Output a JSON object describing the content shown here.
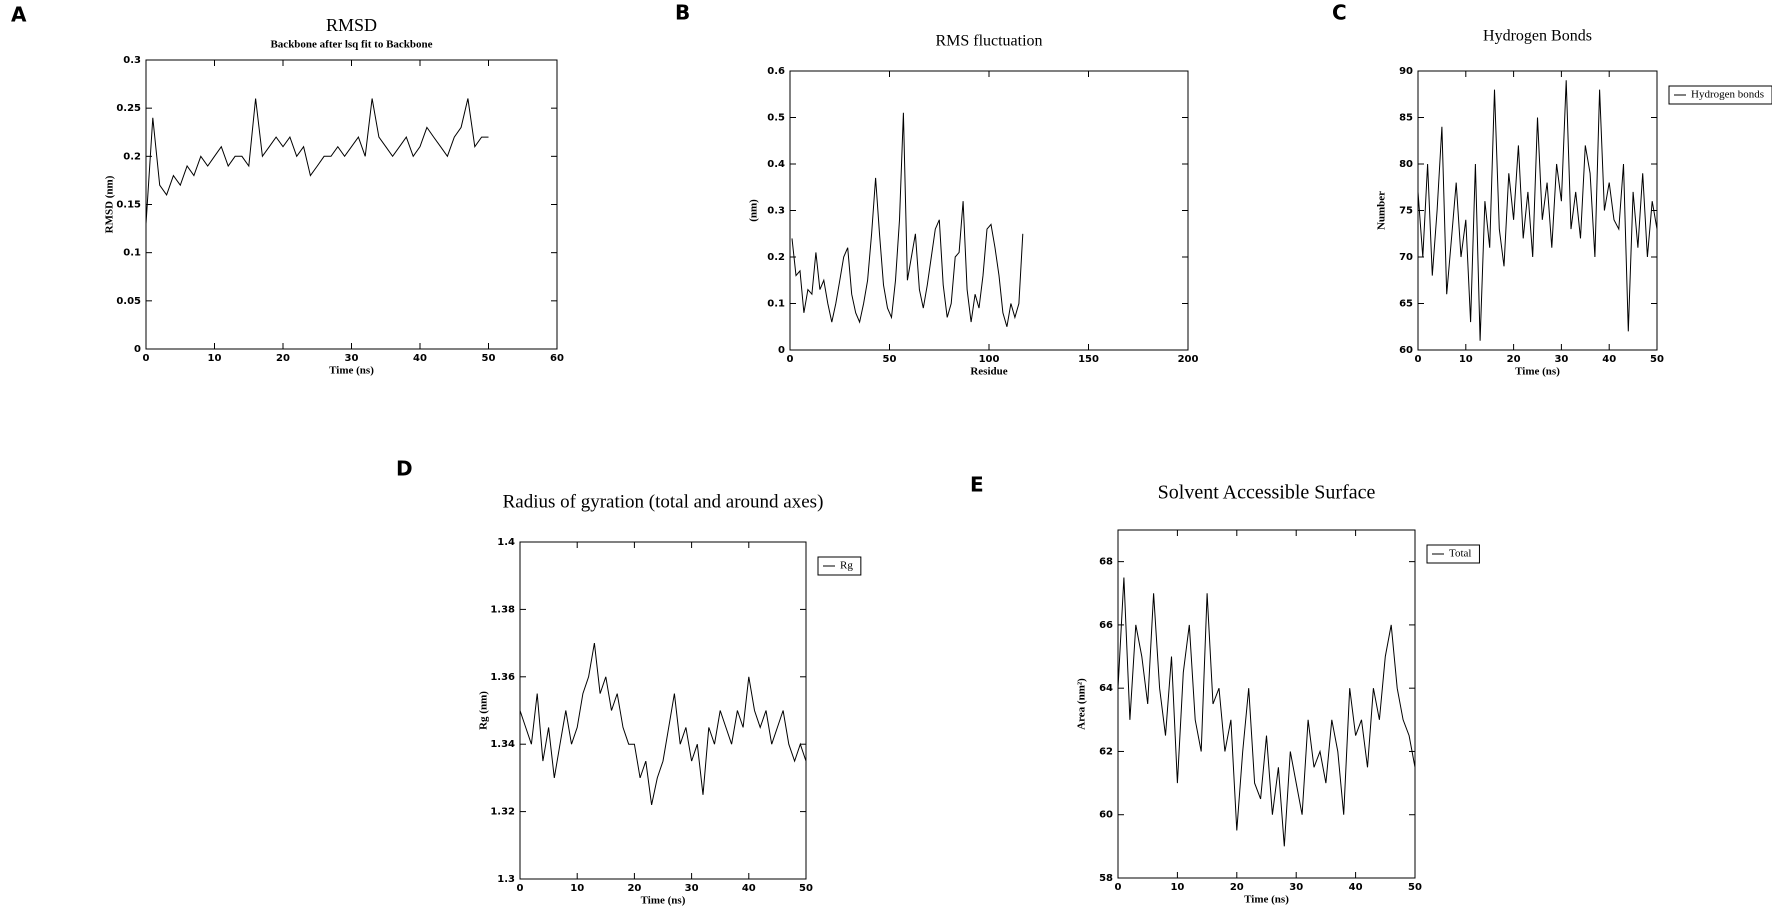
{
  "chart_data": [
    {
      "panel": "A",
      "type": "line",
      "title": "RMSD",
      "subtitle": "Backbone after lsq fit to Backbone",
      "x_label": "Time (ns)",
      "y_label": "RMSD (nm)",
      "xlim": [
        0,
        60
      ],
      "xticks": [
        0,
        10,
        20,
        30,
        40,
        50,
        60
      ],
      "ylim": [
        0,
        0.3
      ],
      "yticks": [
        0,
        0.05,
        0.1,
        0.15,
        0.2,
        0.25,
        0.3
      ],
      "grid": false,
      "x": [
        0,
        1,
        2,
        3,
        4,
        5,
        6,
        7,
        8,
        9,
        10,
        11,
        12,
        13,
        14,
        15,
        16,
        17,
        18,
        19,
        20,
        21,
        22,
        23,
        24,
        25,
        26,
        27,
        28,
        29,
        30,
        31,
        32,
        33,
        34,
        35,
        36,
        37,
        38,
        39,
        40,
        41,
        42,
        43,
        44,
        45,
        46,
        47,
        48,
        49,
        50
      ],
      "series": [
        {
          "color": "#000000",
          "values": [
            0.13,
            0.24,
            0.17,
            0.16,
            0.18,
            0.17,
            0.19,
            0.18,
            0.2,
            0.19,
            0.2,
            0.21,
            0.19,
            0.2,
            0.2,
            0.19,
            0.26,
            0.2,
            0.21,
            0.22,
            0.21,
            0.22,
            0.2,
            0.21,
            0.18,
            0.19,
            0.2,
            0.2,
            0.21,
            0.2,
            0.21,
            0.22,
            0.2,
            0.26,
            0.22,
            0.21,
            0.2,
            0.21,
            0.22,
            0.2,
            0.21,
            0.23,
            0.22,
            0.21,
            0.2,
            0.22,
            0.23,
            0.26,
            0.21,
            0.22,
            0.22
          ]
        }
      ]
    },
    {
      "panel": "B",
      "type": "line",
      "title": "RMS fluctuation",
      "x_label": "Residue",
      "y_label": "(nm)",
      "xlim": [
        0,
        200
      ],
      "xticks": [
        0,
        50,
        100,
        150,
        200
      ],
      "ylim": [
        0,
        0.6
      ],
      "yticks": [
        0,
        0.1,
        0.2,
        0.3,
        0.4,
        0.5,
        0.6
      ],
      "grid": false,
      "x": [
        1,
        3,
        5,
        7,
        9,
        11,
        13,
        15,
        17,
        19,
        21,
        23,
        25,
        27,
        29,
        31,
        33,
        35,
        37,
        39,
        41,
        43,
        45,
        47,
        49,
        51,
        53,
        55,
        57,
        59,
        61,
        63,
        65,
        67,
        69,
        71,
        73,
        75,
        77,
        79,
        81,
        83,
        85,
        87,
        89,
        91,
        93,
        95,
        97,
        99,
        101,
        103,
        105,
        107,
        109,
        111,
        113,
        115,
        117
      ],
      "series": [
        {
          "color": "#000000",
          "values": [
            0.24,
            0.16,
            0.17,
            0.08,
            0.13,
            0.12,
            0.21,
            0.13,
            0.15,
            0.1,
            0.06,
            0.1,
            0.15,
            0.2,
            0.22,
            0.12,
            0.08,
            0.06,
            0.1,
            0.15,
            0.25,
            0.37,
            0.25,
            0.14,
            0.09,
            0.07,
            0.15,
            0.28,
            0.51,
            0.15,
            0.2,
            0.25,
            0.13,
            0.09,
            0.14,
            0.2,
            0.26,
            0.28,
            0.14,
            0.07,
            0.1,
            0.2,
            0.21,
            0.32,
            0.13,
            0.06,
            0.12,
            0.09,
            0.16,
            0.26,
            0.27,
            0.22,
            0.16,
            0.08,
            0.05,
            0.1,
            0.07,
            0.1,
            0.25
          ]
        }
      ]
    },
    {
      "panel": "C",
      "type": "line",
      "title": "Hydrogen Bonds",
      "x_label": "Time (ns)",
      "y_label": "Number",
      "legend": "right",
      "xlim": [
        0,
        50
      ],
      "xticks": [
        0,
        10,
        20,
        30,
        40,
        50
      ],
      "ylim": [
        60,
        90
      ],
      "yticks": [
        60,
        65,
        70,
        75,
        80,
        85,
        90
      ],
      "grid": false,
      "x": [
        0,
        1,
        2,
        3,
        4,
        5,
        6,
        7,
        8,
        9,
        10,
        11,
        12,
        13,
        14,
        15,
        16,
        17,
        18,
        19,
        20,
        21,
        22,
        23,
        24,
        25,
        26,
        27,
        28,
        29,
        30,
        31,
        32,
        33,
        34,
        35,
        36,
        37,
        38,
        39,
        40,
        41,
        42,
        43,
        44,
        45,
        46,
        47,
        48,
        49,
        50
      ],
      "series": [
        {
          "name": "Hydrogen bonds",
          "color": "#000000",
          "values": [
            77,
            70,
            80,
            68,
            75,
            84,
            66,
            72,
            78,
            70,
            74,
            63,
            80,
            61,
            76,
            71,
            88,
            73,
            69,
            79,
            74,
            82,
            72,
            77,
            70,
            85,
            74,
            78,
            71,
            80,
            76,
            89,
            73,
            77,
            72,
            82,
            79,
            70,
            88,
            75,
            78,
            74,
            73,
            80,
            62,
            77,
            71,
            79,
            70,
            76,
            73
          ]
        }
      ]
    },
    {
      "panel": "D",
      "type": "line",
      "title": "Radius of gyration (total and around axes)",
      "x_label": "Time (ns)",
      "y_label": "Rg (nm)",
      "legend": "right",
      "xlim": [
        0,
        50
      ],
      "xticks": [
        0,
        10,
        20,
        30,
        40,
        50
      ],
      "ylim": [
        1.3,
        1.4
      ],
      "yticks": [
        1.3,
        1.32,
        1.34,
        1.36,
        1.38,
        1.4
      ],
      "grid": false,
      "x": [
        0,
        1,
        2,
        3,
        4,
        5,
        6,
        7,
        8,
        9,
        10,
        11,
        12,
        13,
        14,
        15,
        16,
        17,
        18,
        19,
        20,
        21,
        22,
        23,
        24,
        25,
        26,
        27,
        28,
        29,
        30,
        31,
        32,
        33,
        34,
        35,
        36,
        37,
        38,
        39,
        40,
        41,
        42,
        43,
        44,
        45,
        46,
        47,
        48,
        49,
        50
      ],
      "series": [
        {
          "name": "Rg",
          "color": "#000000",
          "values": [
            1.35,
            1.345,
            1.34,
            1.355,
            1.335,
            1.345,
            1.33,
            1.34,
            1.35,
            1.34,
            1.345,
            1.355,
            1.36,
            1.37,
            1.355,
            1.36,
            1.35,
            1.355,
            1.345,
            1.34,
            1.34,
            1.33,
            1.335,
            1.322,
            1.33,
            1.335,
            1.345,
            1.355,
            1.34,
            1.345,
            1.335,
            1.34,
            1.325,
            1.345,
            1.34,
            1.35,
            1.345,
            1.34,
            1.35,
            1.345,
            1.36,
            1.35,
            1.345,
            1.35,
            1.34,
            1.345,
            1.35,
            1.34,
            1.335,
            1.34,
            1.335
          ]
        }
      ]
    },
    {
      "panel": "E",
      "type": "line",
      "title": "Solvent Accessible Surface",
      "x_label": "Time (ns)",
      "y_label": "Area (nm²)",
      "legend": "right",
      "xlim": [
        0,
        50
      ],
      "xticks": [
        0,
        10,
        20,
        30,
        40,
        50
      ],
      "ylim": [
        58,
        69
      ],
      "yticks": [
        58,
        60,
        62,
        64,
        66,
        68
      ],
      "grid": false,
      "x": [
        0,
        1,
        2,
        3,
        4,
        5,
        6,
        7,
        8,
        9,
        10,
        11,
        12,
        13,
        14,
        15,
        16,
        17,
        18,
        19,
        20,
        21,
        22,
        23,
        24,
        25,
        26,
        27,
        28,
        29,
        30,
        31,
        32,
        33,
        34,
        35,
        36,
        37,
        38,
        39,
        40,
        41,
        42,
        43,
        44,
        45,
        46,
        47,
        48,
        49,
        50
      ],
      "series": [
        {
          "name": "Total",
          "color": "#000000",
          "values": [
            64,
            67.5,
            63,
            66,
            65,
            63.5,
            67,
            64,
            62.5,
            65,
            61,
            64.5,
            66,
            63,
            62,
            67,
            63.5,
            64,
            62,
            63,
            59.5,
            62,
            64,
            61,
            60.5,
            62.5,
            60,
            61.5,
            59,
            62,
            61,
            60,
            63,
            61.5,
            62,
            61,
            63,
            62,
            60,
            64,
            62.5,
            63,
            61.5,
            64,
            63,
            65,
            66,
            64,
            63,
            62.5,
            61.5
          ]
        }
      ]
    }
  ]
}
